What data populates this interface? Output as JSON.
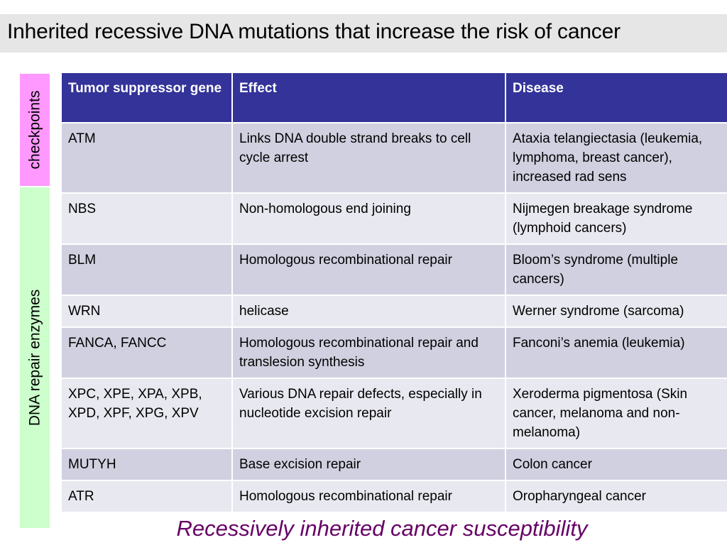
{
  "title": "Inherited recessive DNA mutations that increase the risk of cancer",
  "side_labels": {
    "checkpoints": "checkpoints",
    "dna_repair": "DNA repair enzymes"
  },
  "table": {
    "headers": [
      "Tumor suppressor gene",
      "Effect",
      "Disease"
    ],
    "rows": [
      {
        "gene": "ATM",
        "effect": "Links DNA double strand breaks to cell cycle arrest",
        "disease": "Ataxia telangiectasia (leukemia, lymphoma, breast cancer), increased rad sens"
      },
      {
        "gene": "NBS",
        "effect": "Non-homologous end joining",
        "disease": "Nijmegen breakage syndrome (lymphoid cancers)"
      },
      {
        "gene": "BLM",
        "effect": "Homologous recombinational repair",
        "disease": "Bloom’s syndrome (multiple cancers)"
      },
      {
        "gene": "WRN",
        "effect": "helicase",
        "disease": "Werner syndrome (sarcoma)"
      },
      {
        "gene": "FANCA, FANCC",
        "effect": "Homologous recombinational repair and translesion synthesis",
        "disease": "Fanconi’s anemia (leukemia)"
      },
      {
        "gene": "XPC, XPE, XPA, XPB, XPD, XPF, XPG, XPV",
        "effect": "Various DNA repair defects, especially in nucleotide excision repair",
        "disease": "Xeroderma pigmentosa (Skin cancer, melanoma and non-melanoma)"
      },
      {
        "gene": "MUTYH",
        "effect": "Base excision repair",
        "disease": "Colon cancer"
      },
      {
        "gene": "ATR",
        "effect": "Homologous recombinational repair",
        "disease": "Oropharyngeal cancer"
      }
    ]
  },
  "caption": "Recessively inherited cancer susceptibility",
  "colors": {
    "header_bg": "#333399",
    "row_odd": "#d0d0e0",
    "row_even": "#e8e8f0",
    "checkpoints_bg": "#ff99ff",
    "dna_repair_bg": "#ccffcc",
    "caption": "#660066"
  }
}
